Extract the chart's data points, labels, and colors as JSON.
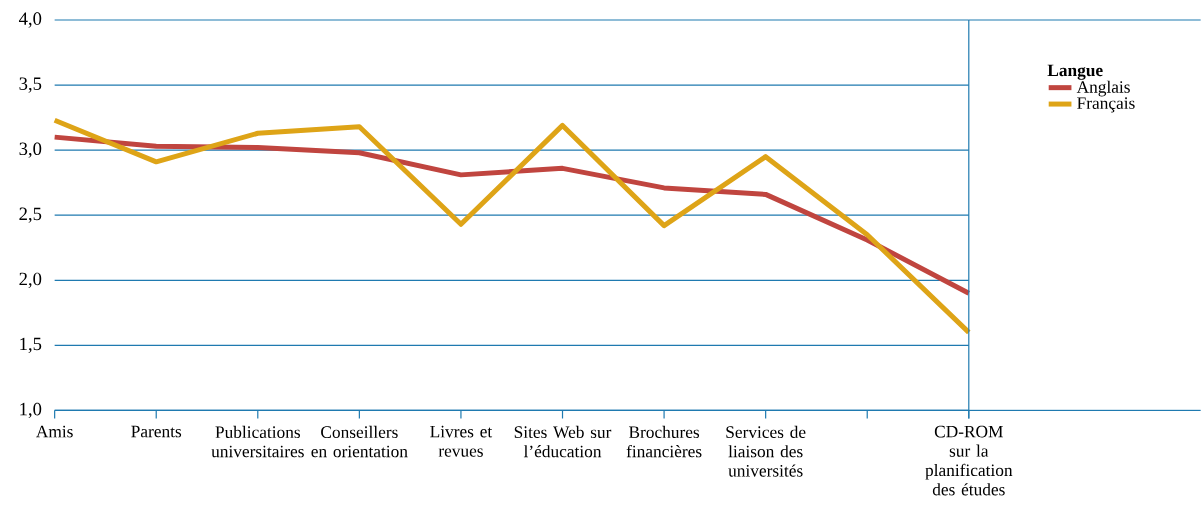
{
  "chart_data": {
    "type": "line",
    "legend_title": "Langue",
    "legend": "right",
    "grid": "y",
    "line_style": "solid",
    "marker": "none",
    "categories": [
      "Amis",
      "Parents",
      "Publications universitaires",
      "Conseillers en orientation",
      "Livres et revues",
      "Sites Web sur l’éducation",
      "Brochures financières",
      "Services de liaison des universités",
      null,
      "CD-ROM sur la planification des études"
    ],
    "series": [
      {
        "name": "Anglais",
        "color": "#c0453f",
        "values": [
          3.1,
          3.03,
          3.02,
          2.98,
          2.81,
          2.86,
          2.71,
          2.66,
          2.31,
          1.9
        ]
      },
      {
        "name": "Français",
        "color": "#dea417",
        "values": [
          3.23,
          2.91,
          3.13,
          3.18,
          2.43,
          3.19,
          2.42,
          2.95,
          2.35,
          1.6
        ]
      }
    ],
    "ylim": [
      1.0,
      4.0
    ],
    "yticks": [
      {
        "value": 1.0,
        "label": "1,0"
      },
      {
        "value": 1.5,
        "label": "1,5"
      },
      {
        "value": 2.0,
        "label": "2,0"
      },
      {
        "value": 2.5,
        "label": "2,5"
      },
      {
        "value": 3.0,
        "label": "3,0"
      },
      {
        "value": 3.5,
        "label": "3,5"
      },
      {
        "value": 4.0,
        "label": "4,0"
      }
    ]
  }
}
